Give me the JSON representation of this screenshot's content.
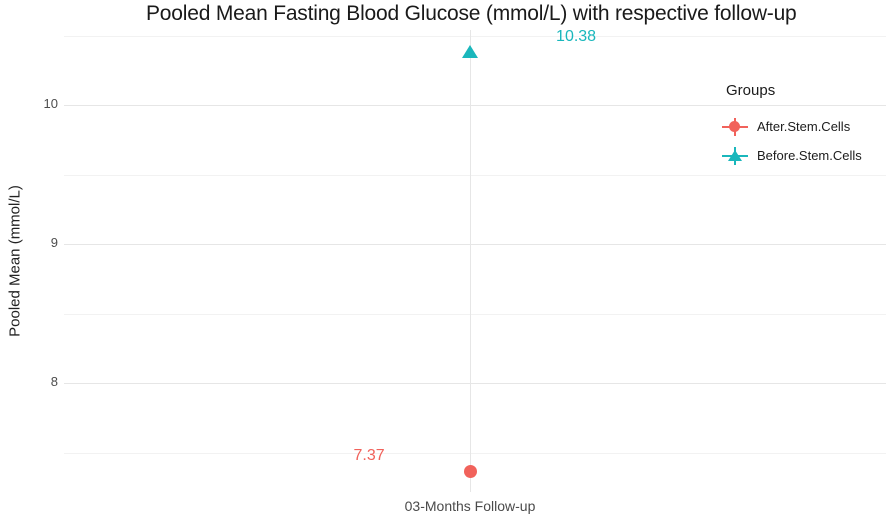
{
  "chart_data": {
    "type": "scatter",
    "title": "Pooled Mean Fasting Blood Glucose (mmol/L) with respective follow-up",
    "ylabel": "Pooled Mean (mmol/L)",
    "xlabel": "",
    "x_categories": [
      "03-Months Follow-up"
    ],
    "ylim": [
      7.22,
      10.54
    ],
    "y_major_ticks": [
      10,
      9,
      8
    ],
    "y_minor_ticks": [
      10.5,
      9.5,
      8.5,
      7.5
    ],
    "grid": true,
    "legend": {
      "title": "Groups",
      "position": "inside-top-right"
    },
    "series": [
      {
        "name": "After.Stem.Cells",
        "marker": "circle",
        "color": "#f1625b",
        "x": "03-Months Follow-up",
        "y": 7.37,
        "data_label": "7.37",
        "label_side": "left"
      },
      {
        "name": "Before.Stem.Cells",
        "marker": "triangle",
        "color": "#1ab7bc",
        "x": "03-Months Follow-up",
        "y": 10.38,
        "data_label": "10.38",
        "label_side": "right"
      }
    ],
    "colors": {
      "grid_major": "#e6e6e6",
      "grid_minor": "#f2f2f2",
      "axis_text": "#4d4d4d",
      "title_text": "#1a1a1a"
    }
  }
}
